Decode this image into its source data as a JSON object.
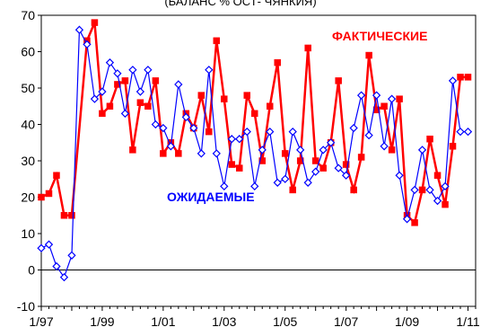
{
  "chart_data": {
    "type": "line",
    "title": "(БАЛАНС % ОСТ- ЧЯНКИЯ)",
    "xlabel": "",
    "ylabel": "",
    "ylim": [
      -10,
      70
    ],
    "yticks": [
      -10,
      0,
      10,
      20,
      30,
      40,
      50,
      60,
      70
    ],
    "xlim": [
      1997.0,
      2011.25
    ],
    "xticks": [
      {
        "label": "1/97",
        "value": 1997.0
      },
      {
        "label": "1/99",
        "value": 1999.0
      },
      {
        "label": "1/01",
        "value": 2001.0
      },
      {
        "label": "1/03",
        "value": 2003.0
      },
      {
        "label": "1/05",
        "value": 2005.0
      },
      {
        "label": "1/07",
        "value": 2007.0
      },
      {
        "label": "1/09",
        "value": 2009.0
      },
      {
        "label": "1/11",
        "value": 2011.0
      }
    ],
    "grid": false,
    "zero_line": true,
    "series": [
      {
        "name": "ФАКТИЧЕСКИЕ",
        "color": "#ff0000",
        "marker": "square-filled",
        "x": [
          1997.0,
          1997.25,
          1997.5,
          1997.75,
          1998.0,
          1998.5,
          1998.75,
          1999.0,
          1999.25,
          1999.5,
          1999.75,
          2000.0,
          2000.25,
          2000.5,
          2000.75,
          2001.0,
          2001.25,
          2001.5,
          2001.75,
          2002.0,
          2002.25,
          2002.5,
          2002.75,
          2003.0,
          2003.25,
          2003.5,
          2003.75,
          2004.0,
          2004.25,
          2004.5,
          2004.75,
          2005.0,
          2005.25,
          2005.5,
          2005.75,
          2006.0,
          2006.25,
          2006.5,
          2006.75,
          2007.0,
          2007.25,
          2007.5,
          2007.75,
          2008.0,
          2008.25,
          2008.5,
          2008.75,
          2009.0,
          2009.25,
          2009.5,
          2009.75,
          2010.0,
          2010.25,
          2010.5,
          2010.75,
          2011.0
        ],
        "y": [
          20,
          21,
          26,
          15,
          15,
          63,
          68,
          43,
          45,
          51,
          52,
          33,
          46,
          45,
          52,
          32,
          35,
          32,
          43,
          39,
          48,
          38,
          63,
          47,
          29,
          28,
          48,
          43,
          30,
          45,
          57,
          32,
          22,
          30,
          61,
          30,
          28,
          35,
          52,
          29,
          22,
          31,
          59,
          44,
          45,
          33,
          47,
          15,
          13,
          22,
          36,
          26,
          18,
          34,
          53,
          53
        ]
      },
      {
        "name": "ОЖИДАЕМЫЕ",
        "color": "#0000ff",
        "marker": "diamond-open",
        "x": [
          1997.0,
          1997.25,
          1997.5,
          1997.75,
          1998.0,
          1998.25,
          1998.5,
          1998.75,
          1999.0,
          1999.25,
          1999.5,
          1999.75,
          2000.0,
          2000.25,
          2000.5,
          2000.75,
          2001.0,
          2001.25,
          2001.5,
          2001.75,
          2002.0,
          2002.25,
          2002.5,
          2002.75,
          2003.0,
          2003.25,
          2003.5,
          2003.75,
          2004.0,
          2004.25,
          2004.5,
          2004.75,
          2005.0,
          2005.25,
          2005.5,
          2005.75,
          2006.0,
          2006.25,
          2006.5,
          2006.75,
          2007.0,
          2007.25,
          2007.5,
          2007.75,
          2008.0,
          2008.25,
          2008.5,
          2008.75,
          2009.0,
          2009.25,
          2009.5,
          2009.75,
          2010.0,
          2010.25,
          2010.5,
          2010.75,
          2011.0
        ],
        "y": [
          6,
          7,
          1,
          -2,
          4,
          66,
          62,
          47,
          49,
          57,
          54,
          43,
          55,
          49,
          55,
          40,
          39,
          34,
          51,
          42,
          39,
          32,
          55,
          32,
          23,
          36,
          36,
          38,
          23,
          33,
          38,
          24,
          25,
          38,
          33,
          24,
          27,
          33,
          35,
          28,
          26,
          39,
          48,
          37,
          48,
          34,
          47,
          26,
          14,
          22,
          33,
          22,
          19,
          23,
          52,
          38,
          38
        ]
      }
    ]
  }
}
